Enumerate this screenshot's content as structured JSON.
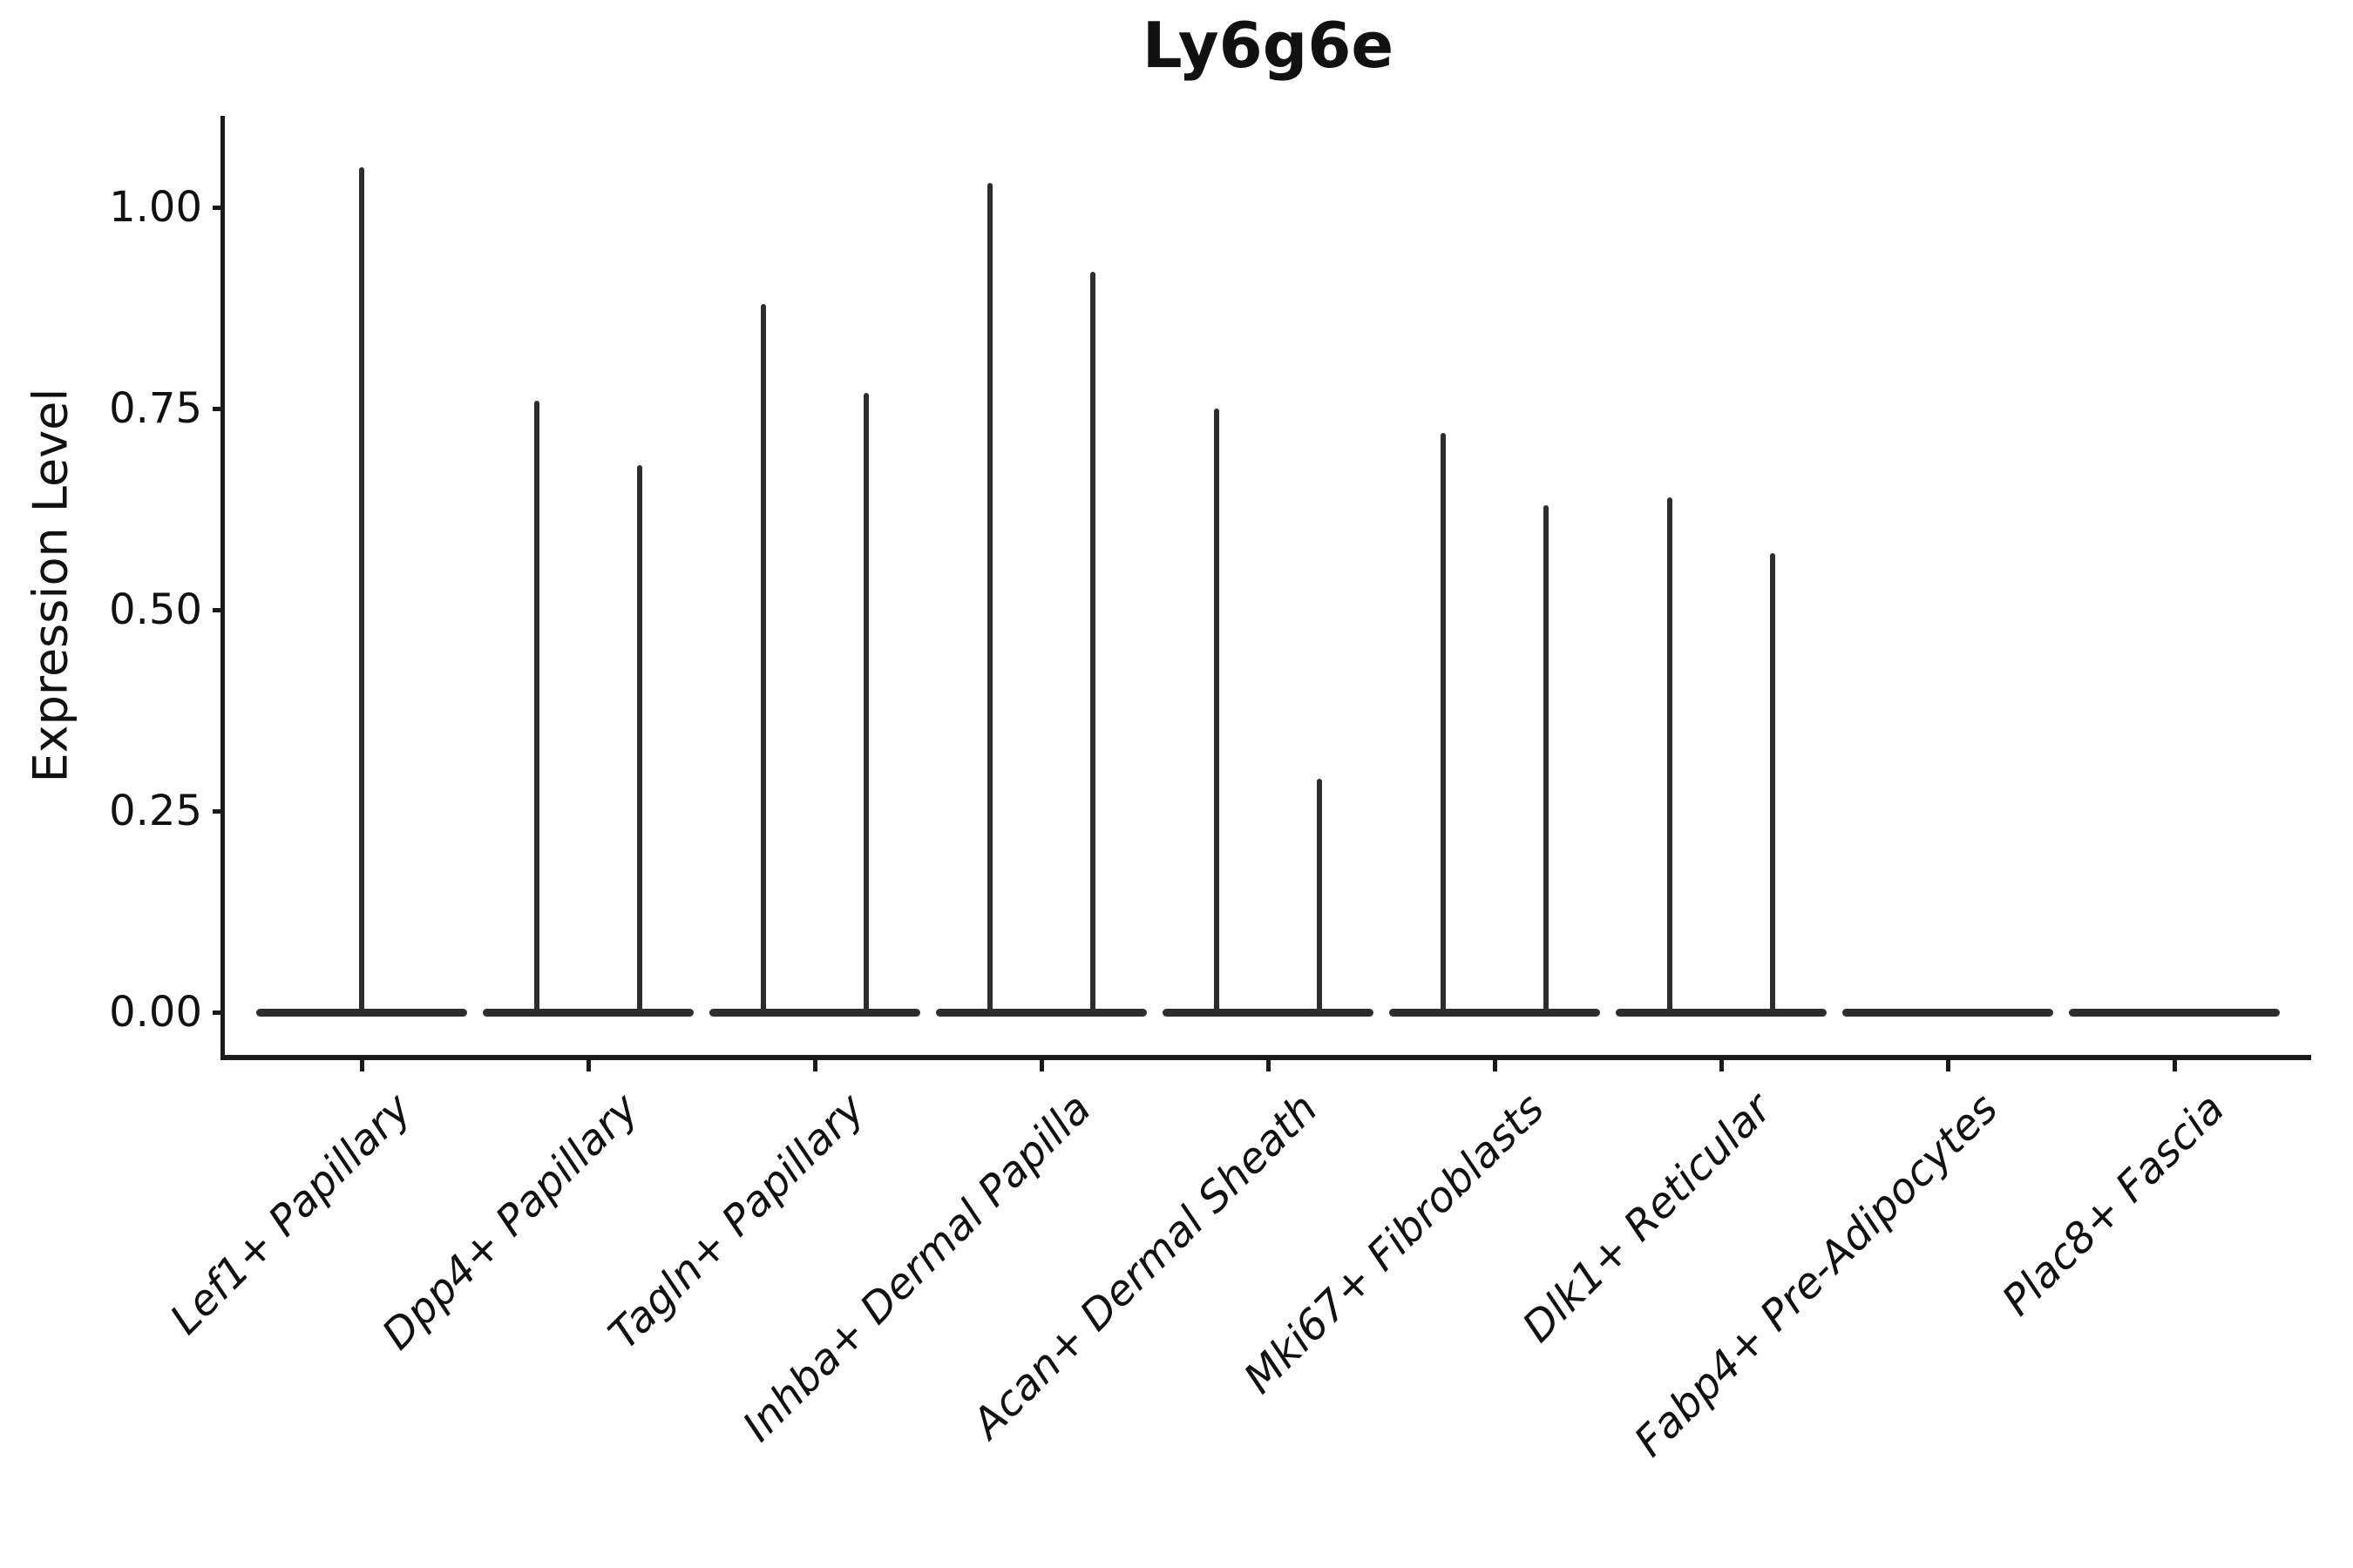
{
  "chart_data": {
    "type": "violin",
    "title": "Ly6g6e",
    "ylabel": "Expression Level",
    "xlabel": "",
    "categories": [
      "Lef1+ Papillary",
      "Dpp4+ Papillary",
      "Tagln+ Papillary",
      "Inhba+ Dermal Papilla",
      "Acan+ Dermal Sheath",
      "Mki67+ Fibroblasts",
      "Dlk1+ Reticular",
      "Fabp4+ Pre-Adipocytes",
      "Plac8+ Fascia"
    ],
    "series": [
      {
        "category": "Lef1+ Papillary",
        "spike_maxima": [
          1.05
        ]
      },
      {
        "category": "Dpp4+ Papillary",
        "spike_maxima": [
          0.76,
          0.68
        ]
      },
      {
        "category": "Tagln+ Papillary",
        "spike_maxima": [
          0.88,
          0.77
        ]
      },
      {
        "category": "Inhba+ Dermal Papilla",
        "spike_maxima": [
          1.03,
          0.92
        ]
      },
      {
        "category": "Acan+ Dermal Sheath",
        "spike_maxima": [
          0.75,
          0.29
        ]
      },
      {
        "category": "Mki67+ Fibroblasts",
        "spike_maxima": [
          0.72,
          0.63
        ]
      },
      {
        "category": "Dlk1+ Reticular",
        "spike_maxima": [
          0.64,
          0.57
        ]
      },
      {
        "category": "Fabp4+ Pre-Adipocytes",
        "spike_maxima": []
      },
      {
        "category": "Plac8+ Fascia",
        "spike_maxima": []
      }
    ],
    "y_ticks": {
      "labels": [
        "0.00",
        "0.25",
        "0.50",
        "0.75",
        "1.00"
      ],
      "values": [
        0,
        0.25,
        0.5,
        0.75,
        1.0
      ]
    },
    "ylim": [
      -0.05,
      1.11
    ],
    "grid": false,
    "legend": "none",
    "description": "Violin plot of Ly6g6e expression per fibroblast subtype; violins collapse to flat baseline bars at 0 with thin density spikes reaching each group's maximum.",
    "colors": {
      "ink": "#2d2d2d",
      "axis": "#1a1a1a",
      "text": "#111111",
      "background": "#ffffff"
    }
  }
}
